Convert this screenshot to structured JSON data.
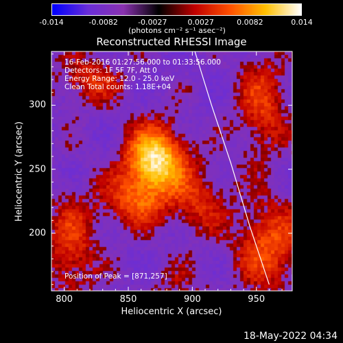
{
  "colorbar": {
    "ticks": [
      "-0.014",
      "-0.0082",
      "-0.0027",
      "0.0027",
      "0.0082",
      "0.014"
    ],
    "values": [
      -0.014,
      -0.0082,
      -0.0027,
      0.0027,
      0.0082,
      0.014
    ],
    "units": "(photons cm⁻² s⁻¹ asec⁻²)",
    "colors": [
      "#0000ff",
      "#6a2ed8",
      "#8a32b0",
      "#000000",
      "#c00000",
      "#ff5000",
      "#ffc000",
      "#ffffff"
    ]
  },
  "annotations": {
    "time": "16-Feb-2016 01:27:56.000 to 01:33:56.000",
    "detectors": "Detectors: 1F 5F 7F, Att 0",
    "energy": "Energy Range: 12.0 - 25.0 keV",
    "clean": "Clean    Total counts: 1.18E+04",
    "peak": "Position of Peak = [871,257]"
  },
  "footer": {
    "date": "18-May-2022 04:34"
  },
  "chart_data": {
    "type": "heatmap",
    "title": "Reconstructed RHESSI Image",
    "xlabel": "Heliocentric X (arcsec)",
    "ylabel": "Heliocentric Y (arcsec)",
    "xlim": [
      790,
      978
    ],
    "ylim": [
      155,
      342
    ],
    "xticks": [
      800,
      850,
      900,
      950
    ],
    "yticks": [
      200,
      250,
      300
    ],
    "xtick_labels": [
      "800",
      "850",
      "900",
      "950"
    ],
    "ytick_labels": [
      "200",
      "250",
      "300"
    ],
    "peak": {
      "x": 871,
      "y": 257,
      "value": 0.014
    },
    "limb_curve": {
      "x": [
        902,
        915,
        930,
        945,
        960
      ],
      "y": [
        342,
        300,
        255,
        205,
        160
      ]
    },
    "sources": [
      {
        "x": 871,
        "y": 257,
        "amp": 1.0,
        "sx": 16,
        "sy": 18
      },
      {
        "x": 855,
        "y": 225,
        "amp": 0.45,
        "sx": 18,
        "sy": 14
      },
      {
        "x": 805,
        "y": 190,
        "amp": 0.4,
        "sx": 14,
        "sy": 28
      },
      {
        "x": 820,
        "y": 320,
        "amp": 0.35,
        "sx": 18,
        "sy": 14
      },
      {
        "x": 960,
        "y": 190,
        "amp": 0.5,
        "sx": 18,
        "sy": 24
      },
      {
        "x": 955,
        "y": 300,
        "amp": 0.4,
        "sx": 14,
        "sy": 28
      },
      {
        "x": 905,
        "y": 225,
        "amp": 0.35,
        "sx": 14,
        "sy": 18
      },
      {
        "x": 890,
        "y": 160,
        "amp": 0.15,
        "sx": 20,
        "sy": 12
      }
    ]
  }
}
